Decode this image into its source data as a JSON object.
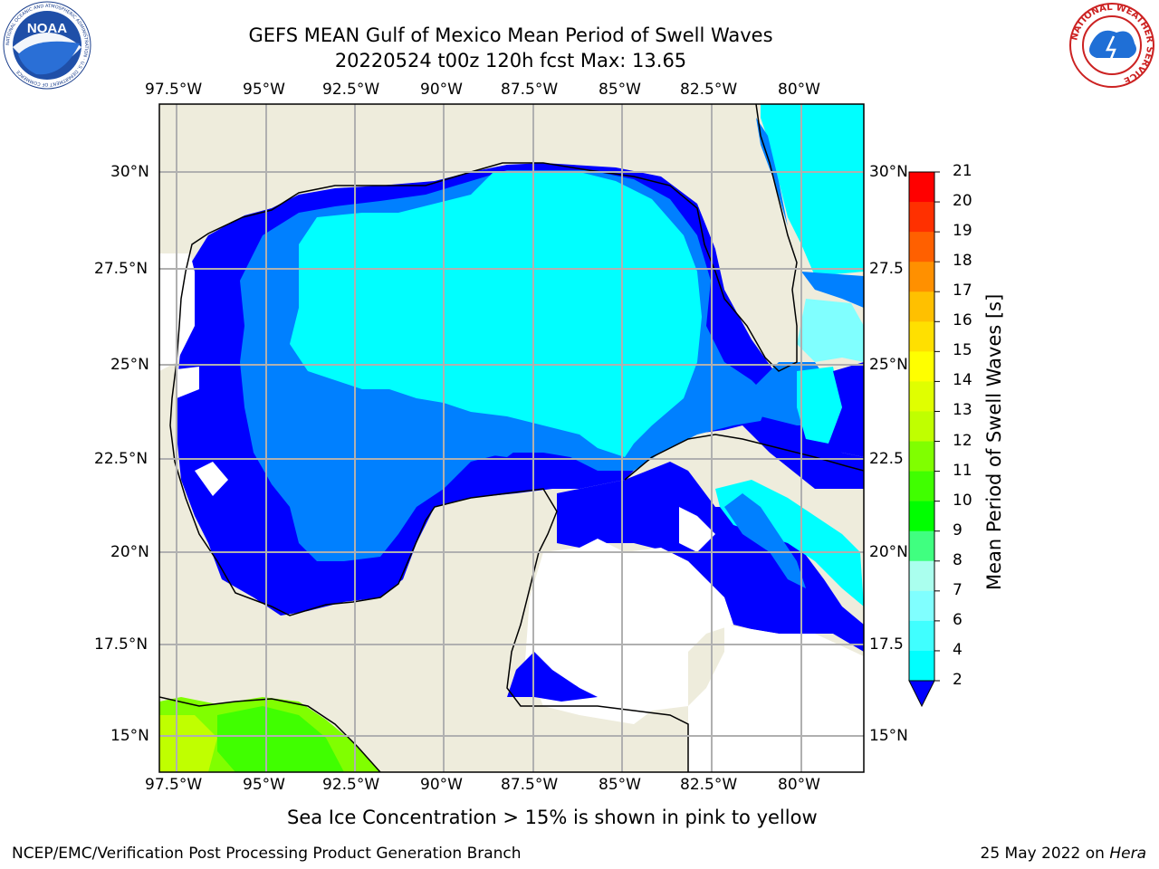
{
  "title": {
    "line1": "GEFS MEAN Gulf of Mexico Mean Period of Swell Waves",
    "line2": "20220524 t00z 120h fcst   Max: 13.65"
  },
  "map": {
    "lon_labels": [
      "97.5°W",
      "95°W",
      "92.5°W",
      "90°W",
      "87.5°W",
      "85°W",
      "82.5°W",
      "80°W"
    ],
    "lat_labels_left": [
      "30°N",
      "27.5°N",
      "25°N",
      "22.5°N",
      "20°N",
      "17.5°N",
      "15°N"
    ],
    "lat_labels_right": [
      "30°N",
      "27.5",
      "25°N",
      "22.5",
      "20°N",
      "17.5",
      "15°N"
    ],
    "colors": {
      "land": "#eeecdc",
      "ocean_empty": "#ffffff",
      "grid": "#b0b0b0"
    }
  },
  "colorbar": {
    "label": "Mean Period of Swell Waves [s]",
    "ticks": [
      "21",
      "20",
      "19",
      "18",
      "17",
      "16",
      "15",
      "14",
      "13",
      "12",
      "11",
      "10",
      "9",
      "8",
      "7",
      "6",
      "4",
      "2"
    ],
    "colors": [
      "#0000ff",
      "#0080ff",
      "#00ffff",
      "#40ffff",
      "#80ffff",
      "#aaffee",
      "#40ff80",
      "#00ff00",
      "#40ff00",
      "#80ff00",
      "#c0ff00",
      "#e0ff00",
      "#ffff00",
      "#ffe000",
      "#ffc000",
      "#ff9000",
      "#ff6000",
      "#ff3000",
      "#ff0000"
    ]
  },
  "note": "Sea Ice Concentration > 15% is shown in pink to yellow",
  "footer": {
    "left": "NCEP/EMC/Verification Post Processing Product Generation Branch",
    "date": "25 May 2022 on ",
    "machine": "Hera"
  },
  "logos": {
    "noaa": "NOAA",
    "noaa_ring": "NATIONAL OCEANIC AND ATMOSPHERIC ADMINISTRATION · U.S. DEPARTMENT OF COMMERCE",
    "nws_ring": "NATIONAL WEATHER SERVICE"
  }
}
